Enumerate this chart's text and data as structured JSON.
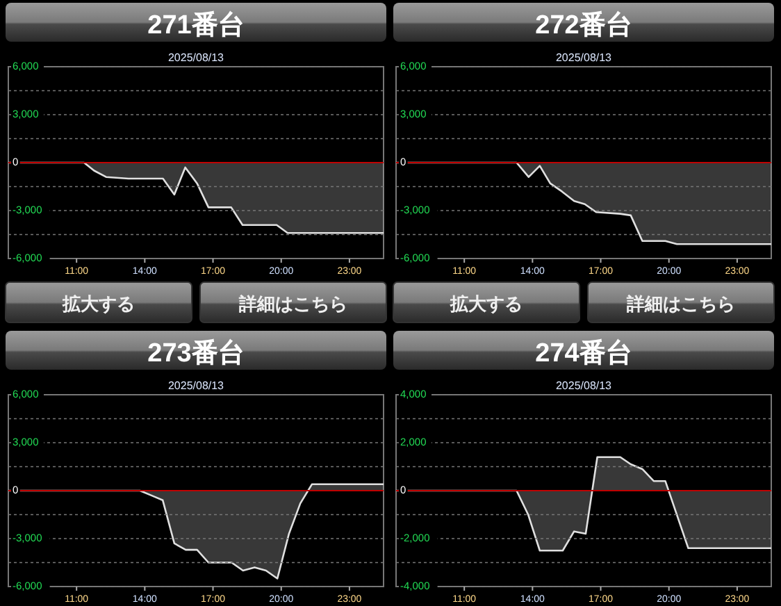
{
  "chart_data": [
    {
      "type": "area",
      "title": "271番台",
      "subtitle": "2025/08/13",
      "annotations": [
        "拡大する",
        "詳細はこちら"
      ],
      "xlim": [
        8,
        24.5
      ],
      "xticks": [
        {
          "value": 11,
          "label": "11:00"
        },
        {
          "value": 14,
          "label": "14:00"
        },
        {
          "value": 17,
          "label": "17:00"
        },
        {
          "value": 20,
          "label": "20:00"
        },
        {
          "value": 23,
          "label": "23:00"
        }
      ],
      "ylim": [
        -6000,
        6000
      ],
      "yticks": [
        {
          "value": -6000,
          "label": "-6,000"
        },
        {
          "value": -4500,
          "label": null
        },
        {
          "value": -3000,
          "label": "-3,000"
        },
        {
          "value": -1500,
          "label": null
        },
        {
          "value": 0,
          "label": "0"
        },
        {
          "value": 1500,
          "label": null
        },
        {
          "value": 3000,
          "label": "3,000"
        },
        {
          "value": 4500,
          "label": null
        },
        {
          "value": 6000,
          "label": "6,000"
        }
      ],
      "grid": "y",
      "ref_lines": [
        {
          "axis": "y",
          "value": 0,
          "color": "#c00000"
        }
      ],
      "series": [
        {
          "color": "#e0e0e0",
          "x": [
            8,
            11.33,
            11.77,
            12.3,
            13.28,
            14.8,
            15.3,
            15.78,
            16.3,
            16.8,
            17.8,
            18.3,
            19.8,
            20.28,
            24.5
          ],
          "values": [
            0,
            0,
            -500,
            -900,
            -1000,
            -1000,
            -2000,
            -300,
            -1300,
            -2800,
            -2800,
            -3900,
            -3900,
            -4400,
            -4400
          ]
        }
      ]
    },
    {
      "type": "area",
      "title": "272番台",
      "subtitle": "2025/08/13",
      "annotations": [
        "拡大する",
        "詳細はこちら"
      ],
      "xlim": [
        8,
        24.5
      ],
      "xticks": [
        {
          "value": 11,
          "label": "11:00"
        },
        {
          "value": 14,
          "label": "14:00"
        },
        {
          "value": 17,
          "label": "17:00"
        },
        {
          "value": 20,
          "label": "20:00"
        },
        {
          "value": 23,
          "label": "23:00"
        }
      ],
      "ylim": [
        -6000,
        6000
      ],
      "yticks": [
        {
          "value": -6000,
          "label": "-6,000"
        },
        {
          "value": -4500,
          "label": null
        },
        {
          "value": -3000,
          "label": "-3,000"
        },
        {
          "value": -1500,
          "label": null
        },
        {
          "value": 0,
          "label": "0"
        },
        {
          "value": 1500,
          "label": null
        },
        {
          "value": 3000,
          "label": "3,000"
        },
        {
          "value": 4500,
          "label": null
        },
        {
          "value": 6000,
          "label": "6,000"
        }
      ],
      "grid": "y",
      "ref_lines": [
        {
          "axis": "y",
          "value": 0,
          "color": "#c00000"
        }
      ],
      "series": [
        {
          "color": "#e0e0e0",
          "x": [
            8,
            13.3,
            13.83,
            14.32,
            14.78,
            15.29,
            15.83,
            16.3,
            16.8,
            17.85,
            18.32,
            18.83,
            19.84,
            20.35,
            24.5
          ],
          "values": [
            0,
            0,
            -900,
            -200,
            -1300,
            -1800,
            -2400,
            -2600,
            -3100,
            -3200,
            -3300,
            -4900,
            -4900,
            -5100,
            -5100
          ]
        }
      ]
    },
    {
      "type": "area",
      "title": "273番台",
      "subtitle": "2025/08/13",
      "xlim": [
        8,
        24.5
      ],
      "xticks": [
        {
          "value": 11,
          "label": "11:00"
        },
        {
          "value": 14,
          "label": "14:00"
        },
        {
          "value": 17,
          "label": "17:00"
        },
        {
          "value": 20,
          "label": "20:00"
        },
        {
          "value": 23,
          "label": "23:00"
        }
      ],
      "ylim": [
        -6000,
        6000
      ],
      "yticks": [
        {
          "value": -6000,
          "label": "-6,000"
        },
        {
          "value": -4500,
          "label": null
        },
        {
          "value": -3000,
          "label": "-3,000"
        },
        {
          "value": -1500,
          "label": null
        },
        {
          "value": 0,
          "label": "0"
        },
        {
          "value": 1500,
          "label": null
        },
        {
          "value": 3000,
          "label": "3,000"
        },
        {
          "value": 4500,
          "label": null
        },
        {
          "value": 6000,
          "label": "6,000"
        }
      ],
      "grid": "y",
      "ref_lines": [
        {
          "axis": "y",
          "value": 0,
          "color": "#c00000"
        }
      ],
      "series": [
        {
          "color": "#e0e0e0",
          "x": [
            8,
            13.79,
            14.29,
            14.79,
            15.3,
            15.8,
            16.3,
            16.8,
            17.82,
            18.32,
            18.83,
            19.33,
            19.83,
            20.34,
            20.84,
            21.35,
            24.5
          ],
          "values": [
            0,
            0,
            -300,
            -600,
            -3300,
            -3700,
            -3700,
            -4500,
            -4500,
            -5000,
            -4800,
            -5000,
            -5500,
            -2700,
            -800,
            400,
            400
          ]
        }
      ]
    },
    {
      "type": "area",
      "title": "274番台",
      "subtitle": "2025/08/13",
      "xlim": [
        8,
        24.5
      ],
      "xticks": [
        {
          "value": 11,
          "label": "11:00"
        },
        {
          "value": 14,
          "label": "14:00"
        },
        {
          "value": 17,
          "label": "17:00"
        },
        {
          "value": 20,
          "label": "20:00"
        },
        {
          "value": 23,
          "label": "23:00"
        }
      ],
      "ylim": [
        -4000,
        4000
      ],
      "yticks": [
        {
          "value": -4000,
          "label": "-4,000"
        },
        {
          "value": -3000,
          "label": null
        },
        {
          "value": -2000,
          "label": "-2,000"
        },
        {
          "value": -1000,
          "label": null
        },
        {
          "value": 0,
          "label": "0"
        },
        {
          "value": 1000,
          "label": null
        },
        {
          "value": 2000,
          "label": "2,000"
        },
        {
          "value": 3000,
          "label": null
        },
        {
          "value": 4000,
          "label": "4,000"
        }
      ],
      "grid": "y",
      "ref_lines": [
        {
          "axis": "y",
          "value": 0,
          "color": "#c00000"
        }
      ],
      "series": [
        {
          "color": "#e0e0e0",
          "x": [
            8,
            13.3,
            13.81,
            14.32,
            15.33,
            15.83,
            16.34,
            16.85,
            17.86,
            18.32,
            18.83,
            19.33,
            19.84,
            20.85,
            24.5
          ],
          "values": [
            0,
            0,
            -1000,
            -2500,
            -2500,
            -1700,
            -1800,
            1400,
            1400,
            1100,
            900,
            400,
            400,
            -2400,
            -2400
          ]
        }
      ]
    }
  ]
}
